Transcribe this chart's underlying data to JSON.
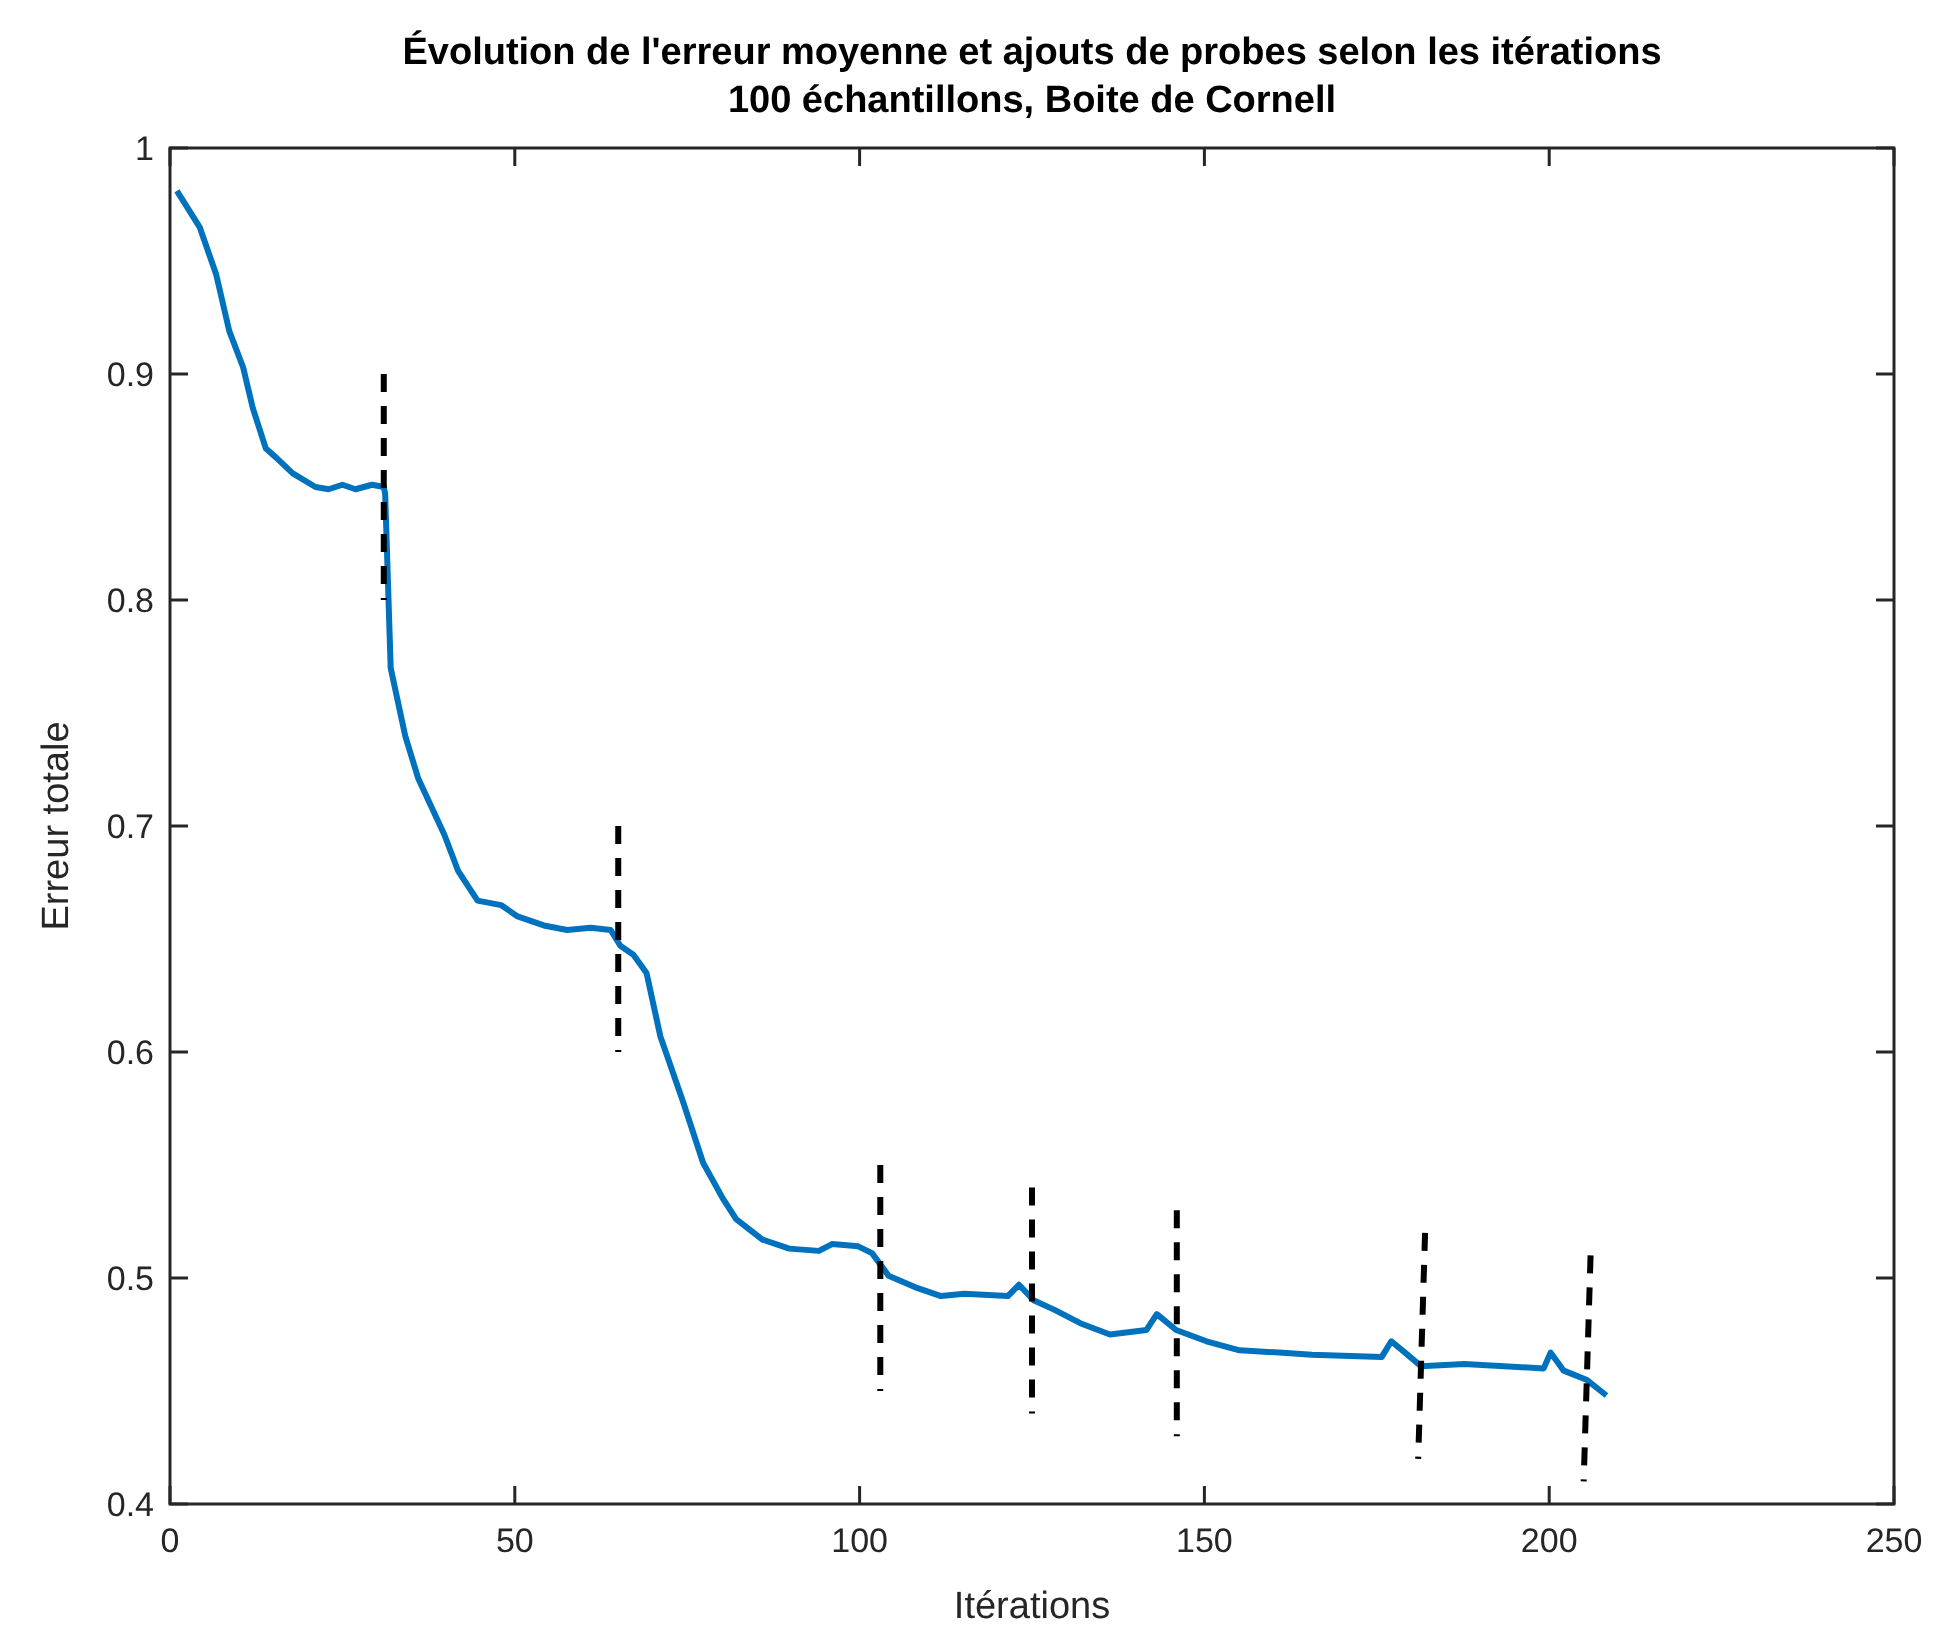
{
  "chart_data": {
    "type": "line",
    "title": "Évolution de l'erreur moyenne et ajouts de probes selon les itérations",
    "subtitle": "100 échantillons, Boite de Cornell",
    "xlabel": "Itérations",
    "ylabel": "Erreur totale",
    "xlim": [
      0,
      250
    ],
    "ylim": [
      0.4,
      1
    ],
    "xticks": [
      0,
      50,
      100,
      150,
      200,
      250
    ],
    "yticks": [
      {
        "value": 0.4,
        "label": "0.4"
      },
      {
        "value": 0.5,
        "label": "0.5"
      },
      {
        "value": 0.6,
        "label": "0.6"
      },
      {
        "value": 0.7,
        "label": "0.7"
      },
      {
        "value": 0.8,
        "label": "0.8"
      },
      {
        "value": 0.9,
        "label": "0.9"
      },
      {
        "value": 1,
        "label": "1"
      }
    ],
    "grid": false,
    "marker": "none",
    "series": [
      {
        "color": "#0072bd",
        "line_style": "solid",
        "x": [
          1,
          4.3,
          6.7,
          8.6,
          10.6,
          12,
          13.9,
          15.4,
          17.8,
          21.1,
          23,
          25,
          26.9,
          29.3,
          31,
          31.2,
          32,
          34.1,
          36,
          39.8,
          41.8,
          44.6,
          48,
          50.4,
          54.2,
          57.6,
          61,
          63.9,
          65.3,
          67.2,
          69.1,
          71.1,
          74.4,
          77.3,
          80.2,
          82.1,
          85.9,
          89.8,
          94.1,
          96,
          99.8,
          101.8,
          104.2,
          108,
          111.8,
          115.2,
          121.5,
          123.1,
          125.3,
          128.2,
          132,
          136.3,
          141.6,
          143.1,
          145.9,
          150.3,
          155.1,
          160.8,
          165.6,
          175.7,
          177.1,
          179.1,
          181.4,
          187.7,
          193.5,
          199.2,
          200.2,
          202.1,
          205.4,
          208.3
        ],
        "values": [
          0.981,
          0.965,
          0.944,
          0.919,
          0.903,
          0.885,
          0.867,
          0.863,
          0.856,
          0.85,
          0.849,
          0.851,
          0.849,
          0.851,
          0.85,
          0.847,
          0.77,
          0.74,
          0.721,
          0.696,
          0.68,
          0.667,
          0.665,
          0.66,
          0.656,
          0.654,
          0.655,
          0.654,
          0.647,
          0.643,
          0.635,
          0.607,
          0.578,
          0.551,
          0.535,
          0.526,
          0.517,
          0.513,
          0.512,
          0.515,
          0.514,
          0.511,
          0.501,
          0.496,
          0.492,
          0.493,
          0.492,
          0.497,
          0.49,
          0.486,
          0.48,
          0.475,
          0.477,
          0.484,
          0.477,
          0.472,
          0.468,
          0.467,
          0.466,
          0.465,
          0.472,
          0.467,
          0.461,
          0.462,
          0.461,
          0.46,
          0.467,
          0.459,
          0.455,
          0.448
        ]
      },
      {
        "color": "#000000",
        "line_style": "dashed",
        "x": [
          31,
          31
        ],
        "values": [
          0.9,
          0.8
        ]
      },
      {
        "color": "#000000",
        "line_style": "dashed",
        "x": [
          65,
          65
        ],
        "values": [
          0.7,
          0.6
        ]
      },
      {
        "color": "#000000",
        "line_style": "dashed",
        "x": [
          103,
          103
        ],
        "values": [
          0.55,
          0.45
        ]
      },
      {
        "color": "#000000",
        "line_style": "dashed",
        "x": [
          125,
          125
        ],
        "values": [
          0.54,
          0.44
        ]
      },
      {
        "color": "#000000",
        "line_style": "dashed",
        "x": [
          146,
          146
        ],
        "values": [
          0.53,
          0.43
        ]
      },
      {
        "color": "#000000",
        "line_style": "dashed",
        "x": [
          182,
          181
        ],
        "values": [
          0.52,
          0.42
        ]
      },
      {
        "color": "#000000",
        "line_style": "dashed",
        "x": [
          206,
          205
        ],
        "values": [
          0.51,
          0.41
        ]
      }
    ]
  }
}
